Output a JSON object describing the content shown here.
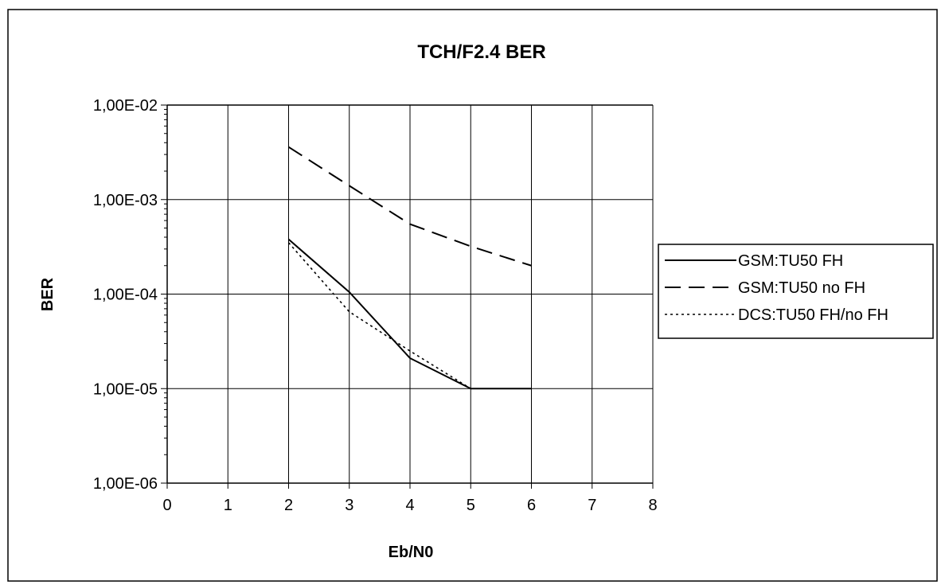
{
  "chart_data": {
    "type": "line",
    "title": "TCH/F2.4  BER",
    "xlabel": "Eb/N0",
    "ylabel": "BER",
    "xlim": [
      0,
      8
    ],
    "ylim": [
      1e-06,
      0.01
    ],
    "yscale": "log",
    "x_ticks": [
      "0",
      "1",
      "2",
      "3",
      "4",
      "5",
      "6",
      "7",
      "8"
    ],
    "y_ticks": [
      "1,00E-06",
      "1,00E-05",
      "1,00E-04",
      "1,00E-03",
      "1,00E-02"
    ],
    "grid": true,
    "legend_position": "right",
    "series": [
      {
        "name": "GSM:TU50 FH",
        "style": "solid",
        "x": [
          2,
          3,
          4,
          5,
          6
        ],
        "y": [
          0.00038,
          0.000105,
          2.1e-05,
          1e-05,
          1e-05
        ]
      },
      {
        "name": "GSM:TU50 no FH",
        "style": "dashed",
        "x": [
          2,
          3,
          4,
          5,
          6
        ],
        "y": [
          0.0036,
          0.0014,
          0.00055,
          0.00032,
          0.0002
        ]
      },
      {
        "name": "DCS:TU50 FH/no FH",
        "style": "dotted",
        "x": [
          2,
          3,
          4,
          5,
          6
        ],
        "y": [
          0.00035,
          6.5e-05,
          2.5e-05,
          1e-05,
          1e-05
        ]
      }
    ]
  }
}
